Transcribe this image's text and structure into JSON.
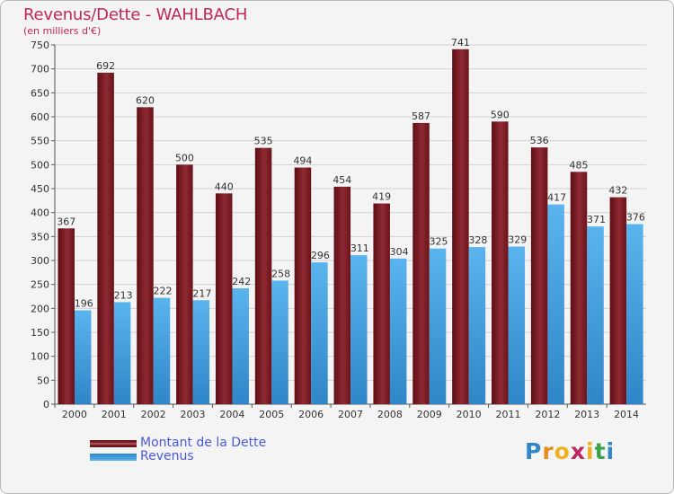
{
  "header": {
    "title": "Revenus/Dette - WAHLBACH",
    "subtitle": "(en milliers d'€)"
  },
  "legend": {
    "items": [
      {
        "label": "Montant de la Dette",
        "color": "#7a1a22"
      },
      {
        "label": "Revenus",
        "color": "#4ea6e6"
      }
    ]
  },
  "logo": {
    "text": "Proxiti"
  },
  "chart_data": {
    "type": "bar",
    "title": "Revenus/Dette - WAHLBACH",
    "subtitle": "(en milliers d'€)",
    "xlabel": "",
    "ylabel": "",
    "ylim": [
      0,
      750
    ],
    "ytick_step": 50,
    "grid": true,
    "legend_position": "bottom-left",
    "categories": [
      "2000",
      "2001",
      "2002",
      "2003",
      "2004",
      "2005",
      "2006",
      "2007",
      "2008",
      "2009",
      "2010",
      "2011",
      "2012",
      "2013",
      "2014"
    ],
    "series": [
      {
        "name": "Montant de la Dette",
        "color": "#7a1a22",
        "values": [
          367,
          692,
          620,
          500,
          440,
          535,
          494,
          454,
          419,
          587,
          741,
          590,
          536,
          485,
          432
        ]
      },
      {
        "name": "Revenus",
        "color": "#4ea6e6",
        "values": [
          196,
          213,
          222,
          217,
          242,
          258,
          296,
          311,
          304,
          325,
          328,
          329,
          417,
          371,
          376
        ]
      }
    ]
  }
}
